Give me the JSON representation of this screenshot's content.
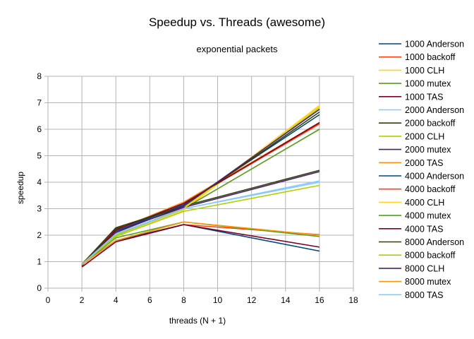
{
  "chart_data": {
    "type": "line",
    "title": "Speedup vs. Threads (awesome)",
    "subtitle": "exponential packets",
    "xlabel": "threads (N + 1)",
    "ylabel": "speedup",
    "xlim": [
      0,
      18
    ],
    "ylim": [
      0,
      8
    ],
    "xticks": [
      0,
      2,
      4,
      6,
      8,
      10,
      12,
      14,
      16,
      18
    ],
    "yticks": [
      0,
      1,
      2,
      3,
      4,
      5,
      6,
      7,
      8
    ],
    "xtick_labels": [
      "0",
      "2",
      "4",
      "6",
      "8",
      "10",
      "12",
      "14",
      "16",
      "18"
    ],
    "ytick_labels": [
      "0",
      "1",
      "2",
      "3",
      "4",
      "5",
      "6",
      "7",
      "8"
    ],
    "grid": true,
    "legend_position": "right",
    "x": [
      2,
      4,
      8,
      16
    ],
    "series": [
      {
        "name": "1000 Anderson",
        "color": "#004586",
        "values": [
          0.9,
          1.8,
          2.4,
          1.4
        ]
      },
      {
        "name": "1000 backoff",
        "color": "#ff420e",
        "values": [
          0.8,
          1.75,
          2.4,
          2.02
        ]
      },
      {
        "name": "1000 CLH",
        "color": "#ffd320",
        "values": [
          0.95,
          2.0,
          2.95,
          6.85
        ]
      },
      {
        "name": "1000 mutex",
        "color": "#579d1c",
        "values": [
          0.9,
          2.0,
          3.0,
          6.0
        ]
      },
      {
        "name": "1000 TAS",
        "color": "#7e0021",
        "values": [
          0.8,
          1.75,
          2.4,
          1.55
        ]
      },
      {
        "name": "2000 Anderson",
        "color": "#83caff",
        "values": [
          0.92,
          2.0,
          3.0,
          4.05
        ]
      },
      {
        "name": "2000 backoff",
        "color": "#314004",
        "values": [
          0.9,
          2.25,
          3.1,
          4.45
        ]
      },
      {
        "name": "2000 CLH",
        "color": "#aecf00",
        "values": [
          0.92,
          2.0,
          3.05,
          6.8
        ]
      },
      {
        "name": "2000 mutex",
        "color": "#4b1f6f",
        "values": [
          0.9,
          2.15,
          3.05,
          4.4
        ]
      },
      {
        "name": "2000 TAS",
        "color": "#ff950e",
        "values": [
          0.9,
          2.2,
          3.25,
          6.25
        ]
      },
      {
        "name": "4000 Anderson",
        "color": "#004586",
        "values": [
          0.9,
          2.15,
          3.15,
          6.55
        ]
      },
      {
        "name": "4000 backoff",
        "color": "#ff420e",
        "values": [
          0.85,
          2.2,
          3.2,
          6.2
        ]
      },
      {
        "name": "4000 CLH",
        "color": "#ffd320",
        "values": [
          0.95,
          2.05,
          3.0,
          6.9
        ]
      },
      {
        "name": "4000 mutex",
        "color": "#579d1c",
        "values": [
          0.9,
          1.9,
          2.5,
          1.95
        ]
      },
      {
        "name": "4000 TAS",
        "color": "#7e0021",
        "values": [
          0.85,
          2.2,
          3.2,
          6.25
        ]
      },
      {
        "name": "8000 Anderson",
        "color": "#314004",
        "values": [
          0.9,
          2.28,
          3.1,
          6.65
        ]
      },
      {
        "name": "8000 backoff",
        "color": "#aecf00",
        "values": [
          0.9,
          1.95,
          2.9,
          3.88
        ]
      },
      {
        "name": "8000 CLH",
        "color": "#4b1f6f",
        "values": [
          0.9,
          2.1,
          3.1,
          6.75
        ]
      },
      {
        "name": "8000 mutex",
        "color": "#ff950e",
        "values": [
          0.88,
          1.8,
          2.5,
          2.0
        ]
      },
      {
        "name": "8000 TAS",
        "color": "#83caff",
        "values": [
          0.9,
          2.05,
          3.0,
          4.0
        ]
      }
    ]
  }
}
